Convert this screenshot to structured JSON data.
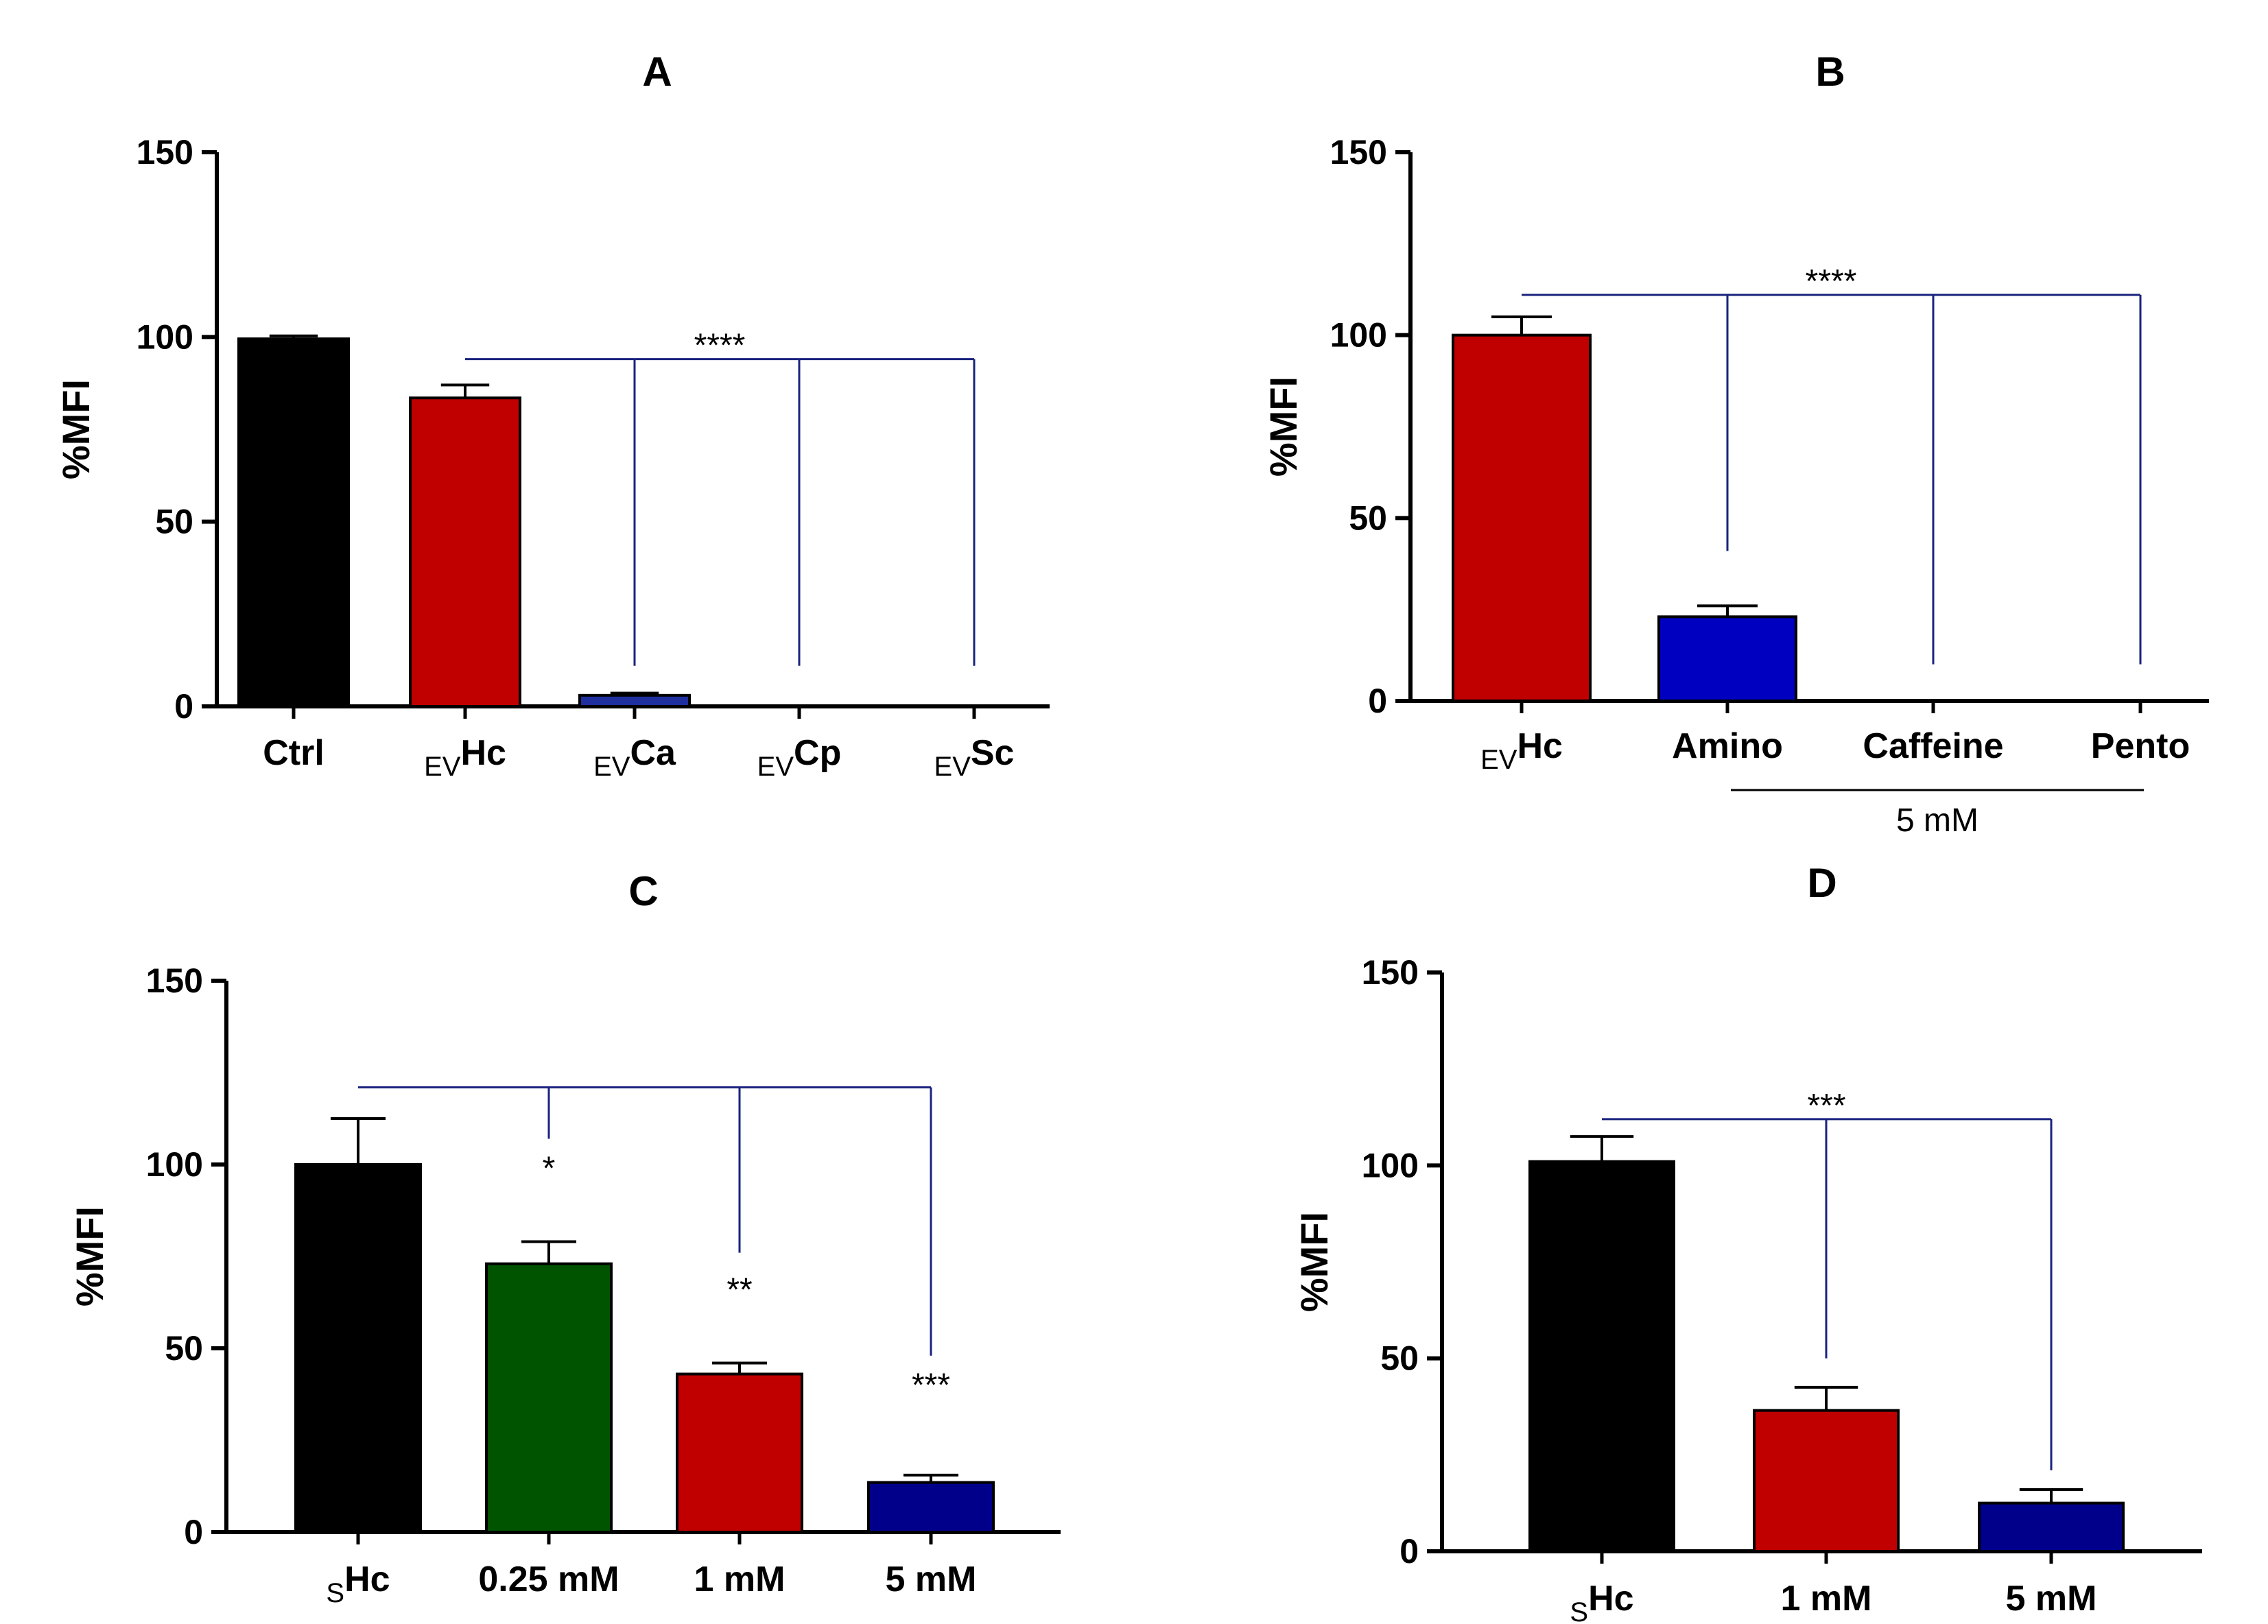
{
  "chart_data": [
    {
      "id": "A",
      "type": "bar",
      "title": "A",
      "ylabel": "%MFI",
      "ylim": [
        0,
        150
      ],
      "yticks": [
        0,
        50,
        100,
        150
      ],
      "categories": [
        {
          "prefix": "",
          "name": "Ctrl"
        },
        {
          "prefix": "EV",
          "name": "Hc"
        },
        {
          "prefix": "EV",
          "name": "Ca"
        },
        {
          "prefix": "EV",
          "name": "Cp"
        },
        {
          "prefix": "EV",
          "name": "Sc"
        }
      ],
      "values": [
        99.5,
        83.5,
        3,
        0,
        0
      ],
      "errors": [
        0.8,
        3.5,
        0.6,
        0,
        0
      ],
      "colors": [
        "#000000",
        "#c00000",
        "#1f2f9e",
        "#1f2f9e",
        "#1f2f9e"
      ],
      "significance": {
        "label": "****",
        "from": 1,
        "to": [
          2,
          3,
          4
        ],
        "bar_level": 94,
        "drop_to": 11
      }
    },
    {
      "id": "B",
      "type": "bar",
      "title": "B",
      "ylabel": "%MFI",
      "ylim": [
        0,
        150
      ],
      "yticks": [
        0,
        50,
        100,
        150
      ],
      "categories": [
        {
          "prefix": "EV",
          "name": "Hc"
        },
        {
          "prefix": "",
          "name": "Amino"
        },
        {
          "prefix": "",
          "name": "Caffeine"
        },
        {
          "prefix": "",
          "name": "Pento"
        }
      ],
      "values": [
        100,
        23,
        0,
        0
      ],
      "errors": [
        5,
        3,
        0,
        0
      ],
      "colors": [
        "#c00000",
        "#0000c0",
        "#0000c0",
        "#0000c0"
      ],
      "significance": {
        "label": "****",
        "from": 0,
        "to": [
          1,
          2,
          3
        ],
        "bar_level": 111,
        "drop_to": [
          41,
          10,
          10
        ]
      },
      "group_note": {
        "label": "5 mM",
        "from": 1,
        "to": 3
      }
    },
    {
      "id": "C",
      "type": "bar",
      "title": "C",
      "ylabel": "%MFI",
      "ylim": [
        0,
        150
      ],
      "yticks": [
        0,
        50,
        100,
        150
      ],
      "categories": [
        {
          "prefix": "S",
          "name": "Hc"
        },
        {
          "prefix": "",
          "name": "0.25 mM"
        },
        {
          "prefix": "",
          "name": "1 mM"
        },
        {
          "prefix": "",
          "name": "5 mM"
        }
      ],
      "values": [
        100,
        73,
        43,
        13.5
      ],
      "errors": [
        12.5,
        6,
        3,
        2
      ],
      "colors": [
        "#000000",
        "#005400",
        "#c00000",
        "#00008b"
      ],
      "significance": {
        "from": 0,
        "to": [
          1,
          2,
          3
        ],
        "bar_level": 121,
        "drop_to": [
          107,
          76,
          48
        ],
        "labels": [
          "*",
          "**",
          "***"
        ],
        "label_levels": [
          96,
          63,
          37
        ]
      }
    },
    {
      "id": "D",
      "type": "bar",
      "title": "D",
      "ylabel": "%MFI",
      "ylim": [
        0,
        150
      ],
      "yticks": [
        0,
        50,
        100,
        150
      ],
      "categories": [
        {
          "prefix": "S",
          "name": "Hc"
        },
        {
          "prefix": "",
          "name": "1 mM"
        },
        {
          "prefix": "",
          "name": "5 mM"
        }
      ],
      "values": [
        101,
        36.5,
        12.5
      ],
      "errors": [
        6.5,
        6,
        3.5
      ],
      "colors": [
        "#000000",
        "#c00000",
        "#00008b"
      ],
      "significance": {
        "label": "***",
        "from": 0,
        "to": [
          1,
          2
        ],
        "bar_level": 112,
        "drop_to": [
          50,
          21
        ]
      }
    }
  ]
}
